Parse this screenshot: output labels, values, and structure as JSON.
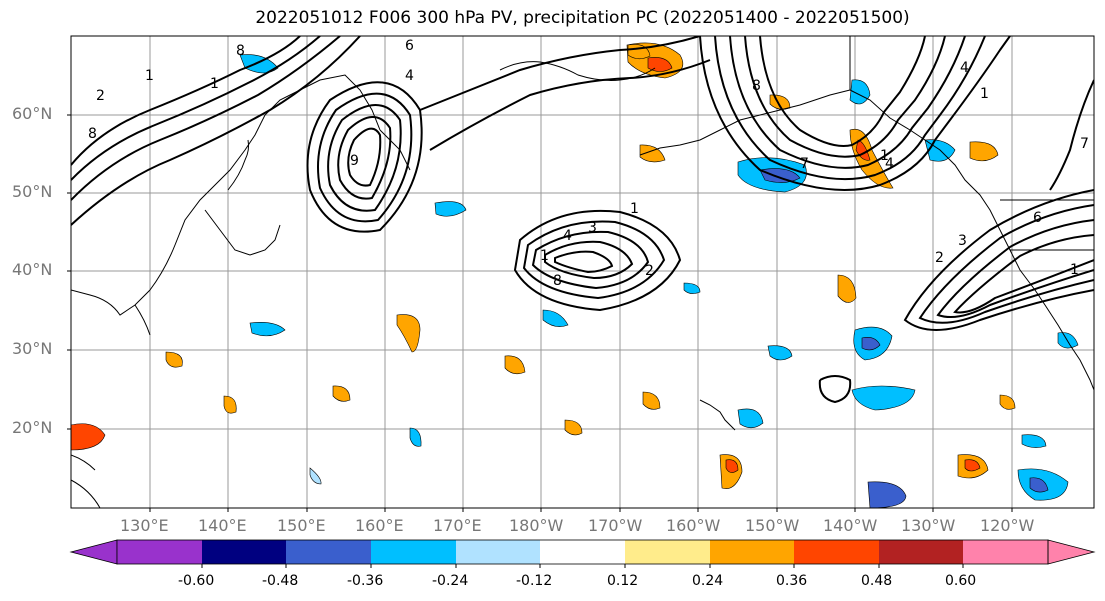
{
  "title": "2022051012 F006 300 hPa PV, precipitation PC (2022051400 - 2022051500)",
  "lat_labels": [
    "60°N",
    "50°N",
    "40°N",
    "30°N",
    "20°N"
  ],
  "lon_labels": [
    "130°E",
    "140°E",
    "150°E",
    "160°E",
    "170°E",
    "180°W",
    "170°W",
    "160°W",
    "150°W",
    "140°W",
    "130°W",
    "120°W"
  ],
  "colorbar": {
    "ticks": [
      "-0.60",
      "-0.48",
      "-0.36",
      "-0.24",
      "-0.12",
      "0.12",
      "0.24",
      "0.36",
      "0.48",
      "0.60"
    ],
    "colors": [
      "#9932cc",
      "#000080",
      "#3a5fcd",
      "#00bfff",
      "#b0e2ff",
      "#ffffff",
      "#ffec8b",
      "#ffa500",
      "#ff4500",
      "#b22222",
      "#ff82ab"
    ]
  },
  "contour_labels": [
    "8",
    "1",
    "2",
    "6",
    "4",
    "1",
    "8",
    "9",
    "1",
    "3",
    "4",
    "1",
    "2",
    "8",
    "7",
    "1",
    "4",
    "8",
    "2",
    "3",
    "6",
    "1",
    "1",
    "4",
    "7"
  ],
  "colors": {
    "land_line": "#000000",
    "grid": "#999999",
    "contour": "#000000"
  }
}
